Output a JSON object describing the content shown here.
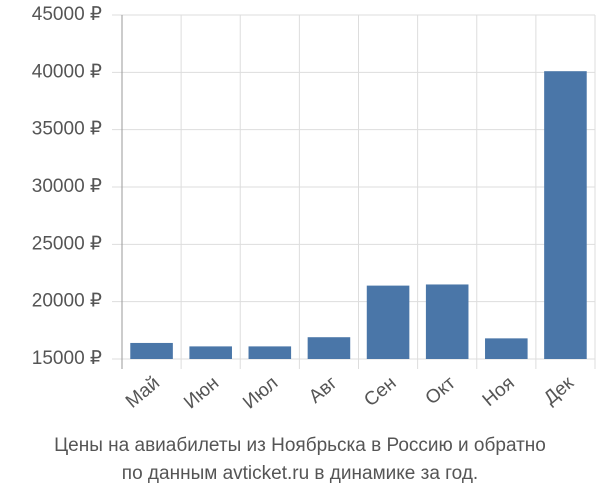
{
  "chart_data": {
    "type": "bar",
    "title": [
      "Цены на авиабилеты из Ноябрьска в Россию и обратно",
      "по данным avticket.ru в динамике за год."
    ],
    "categories": [
      "Май",
      "Июн",
      "Июл",
      "Авг",
      "Сен",
      "Окт",
      "Ноя",
      "Дек"
    ],
    "values": [
      16400,
      16100,
      16100,
      16900,
      21400,
      21500,
      16800,
      40100
    ],
    "color": "#4a76a8",
    "ylim": [
      15000,
      45000
    ],
    "yticks": [
      {
        "value": 15000,
        "label": "15000 ₽"
      },
      {
        "value": 20000,
        "label": "20000 ₽"
      },
      {
        "value": 25000,
        "label": "25000 ₽"
      },
      {
        "value": 30000,
        "label": "30000 ₽"
      },
      {
        "value": 35000,
        "label": "35000 ₽"
      },
      {
        "value": 40000,
        "label": "40000 ₽"
      },
      {
        "value": 45000,
        "label": "45000 ₽"
      }
    ],
    "grid": true
  }
}
